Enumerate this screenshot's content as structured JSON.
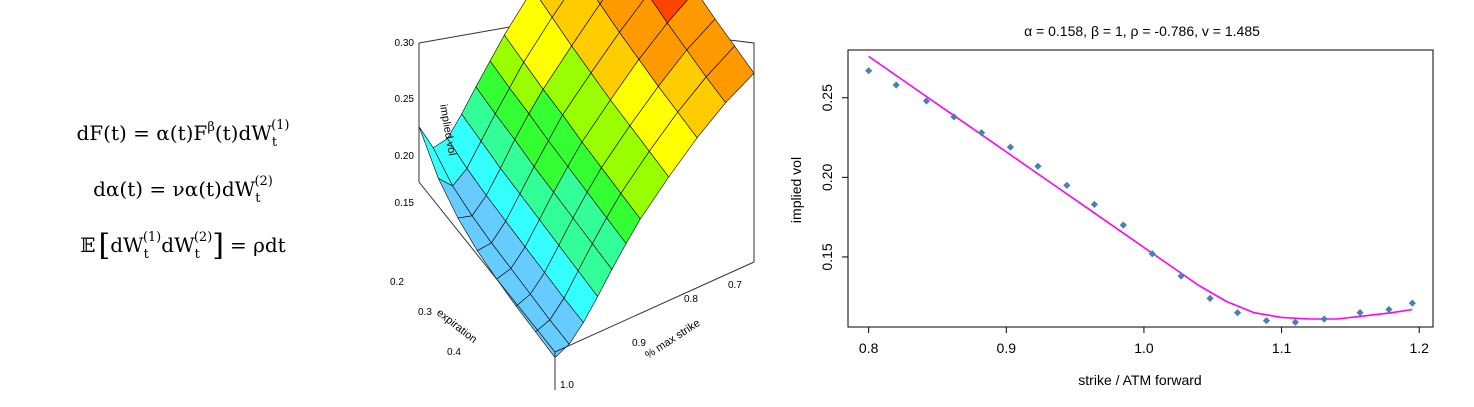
{
  "equations": {
    "line1": {
      "main": "dF(t) = α(t)F",
      "sup": "β",
      "after": "(t)dW",
      "sub": "t",
      "sup2": "(1)"
    },
    "line2": {
      "main": "dα(t) = να(t)dW",
      "sub": "t",
      "sup": "(2)"
    },
    "line3": {
      "E": "𝔼",
      "lb": "[",
      "dW1": "dW",
      "sub1": "t",
      "sup1": "(1)",
      "dW2": "dW",
      "sub2": "t",
      "sup2": "(2)",
      "rb": "]",
      "rhs": "= ρdt"
    }
  },
  "chart_data": [
    {
      "type": "surface3d",
      "zlabel": "implied vol",
      "xlabel": "expiration",
      "ylabel": "% max strike",
      "z_ticks": [
        "0.15",
        "0.20",
        "0.25",
        "0.30"
      ],
      "x_ticks": [
        "0.2",
        "0.3",
        "0.4"
      ],
      "y_ticks": [
        "0.7",
        "0.8",
        "0.9",
        "1.0"
      ],
      "zlim": [
        0.13,
        0.3
      ],
      "strike": [
        0.65,
        0.7,
        0.75,
        0.8,
        0.85,
        0.875,
        0.9,
        0.925,
        0.95,
        0.975,
        1.0
      ],
      "expiration": [
        0.15,
        0.2,
        0.25,
        0.3,
        0.35,
        0.4,
        0.45,
        0.5
      ],
      "surface": [
        [
          0.296,
          0.288,
          0.282,
          0.277,
          0.273,
          0.27,
          0.268,
          0.266
        ],
        [
          0.276,
          0.27,
          0.266,
          0.262,
          0.259,
          0.257,
          0.255,
          0.254
        ],
        [
          0.255,
          0.25,
          0.247,
          0.244,
          0.242,
          0.24,
          0.239,
          0.238
        ],
        [
          0.232,
          0.229,
          0.226,
          0.224,
          0.222,
          0.221,
          0.22,
          0.219
        ],
        [
          0.208,
          0.206,
          0.204,
          0.203,
          0.201,
          0.2,
          0.199,
          0.198
        ],
        [
          0.194,
          0.192,
          0.191,
          0.189,
          0.188,
          0.187,
          0.186,
          0.185
        ],
        [
          0.18,
          0.178,
          0.177,
          0.175,
          0.174,
          0.173,
          0.172,
          0.171
        ],
        [
          0.165,
          0.163,
          0.161,
          0.16,
          0.159,
          0.158,
          0.157,
          0.156
        ],
        [
          0.152,
          0.148,
          0.146,
          0.145,
          0.144,
          0.143,
          0.142,
          0.142
        ],
        [
          0.15,
          0.14,
          0.136,
          0.134,
          0.133,
          0.132,
          0.131,
          0.131
        ],
        [
          0.17,
          0.15,
          0.139,
          0.133,
          0.13,
          0.128,
          0.127,
          0.126
        ]
      ],
      "colormap": [
        "#66ccff",
        "#33ffff",
        "#33ff99",
        "#33ff33",
        "#99ff00",
        "#ffff00",
        "#ffcc00",
        "#ff9900",
        "#ff4400",
        "#ff0000"
      ]
    },
    {
      "type": "scatter+line",
      "title": "α = 0.158, β = 1, ρ = -0.786, v = 1.485",
      "xlabel": "strike / ATM forward",
      "ylabel": "implied vol",
      "xlim": [
        0.785,
        1.21
      ],
      "ylim": [
        0.106,
        0.28
      ],
      "x_ticks": [
        0.8,
        0.9,
        1.0,
        1.1,
        1.2
      ],
      "x_tick_labels": [
        "0.8",
        "0.9",
        "1.0",
        "1.1",
        "1.2"
      ],
      "y_ticks": [
        0.15,
        0.2,
        0.25
      ],
      "y_tick_labels": [
        "0.15",
        "0.20",
        "0.25"
      ],
      "points": {
        "x": [
          0.8,
          0.82,
          0.842,
          0.862,
          0.882,
          0.903,
          0.923,
          0.944,
          0.964,
          0.985,
          1.006,
          1.027,
          1.048,
          1.068,
          1.089,
          1.11,
          1.131,
          1.157,
          1.178,
          1.195
        ],
        "y": [
          0.267,
          0.258,
          0.248,
          0.238,
          0.228,
          0.219,
          0.207,
          0.195,
          0.183,
          0.17,
          0.152,
          0.138,
          0.124,
          0.115,
          0.11,
          0.109,
          0.111,
          0.115,
          0.117,
          0.121
        ],
        "color": "#4682b4"
      },
      "fit": {
        "x": [
          0.8,
          0.82,
          0.84,
          0.86,
          0.88,
          0.9,
          0.92,
          0.94,
          0.96,
          0.98,
          1.0,
          1.02,
          1.04,
          1.06,
          1.08,
          1.1,
          1.12,
          1.14,
          1.16,
          1.18,
          1.195
        ],
        "y": [
          0.276,
          0.264,
          0.252,
          0.24,
          0.228,
          0.216,
          0.204,
          0.192,
          0.18,
          0.168,
          0.156,
          0.144,
          0.132,
          0.122,
          0.115,
          0.112,
          0.111,
          0.111,
          0.113,
          0.115,
          0.117
        ],
        "color": "#ff00ff"
      }
    }
  ]
}
